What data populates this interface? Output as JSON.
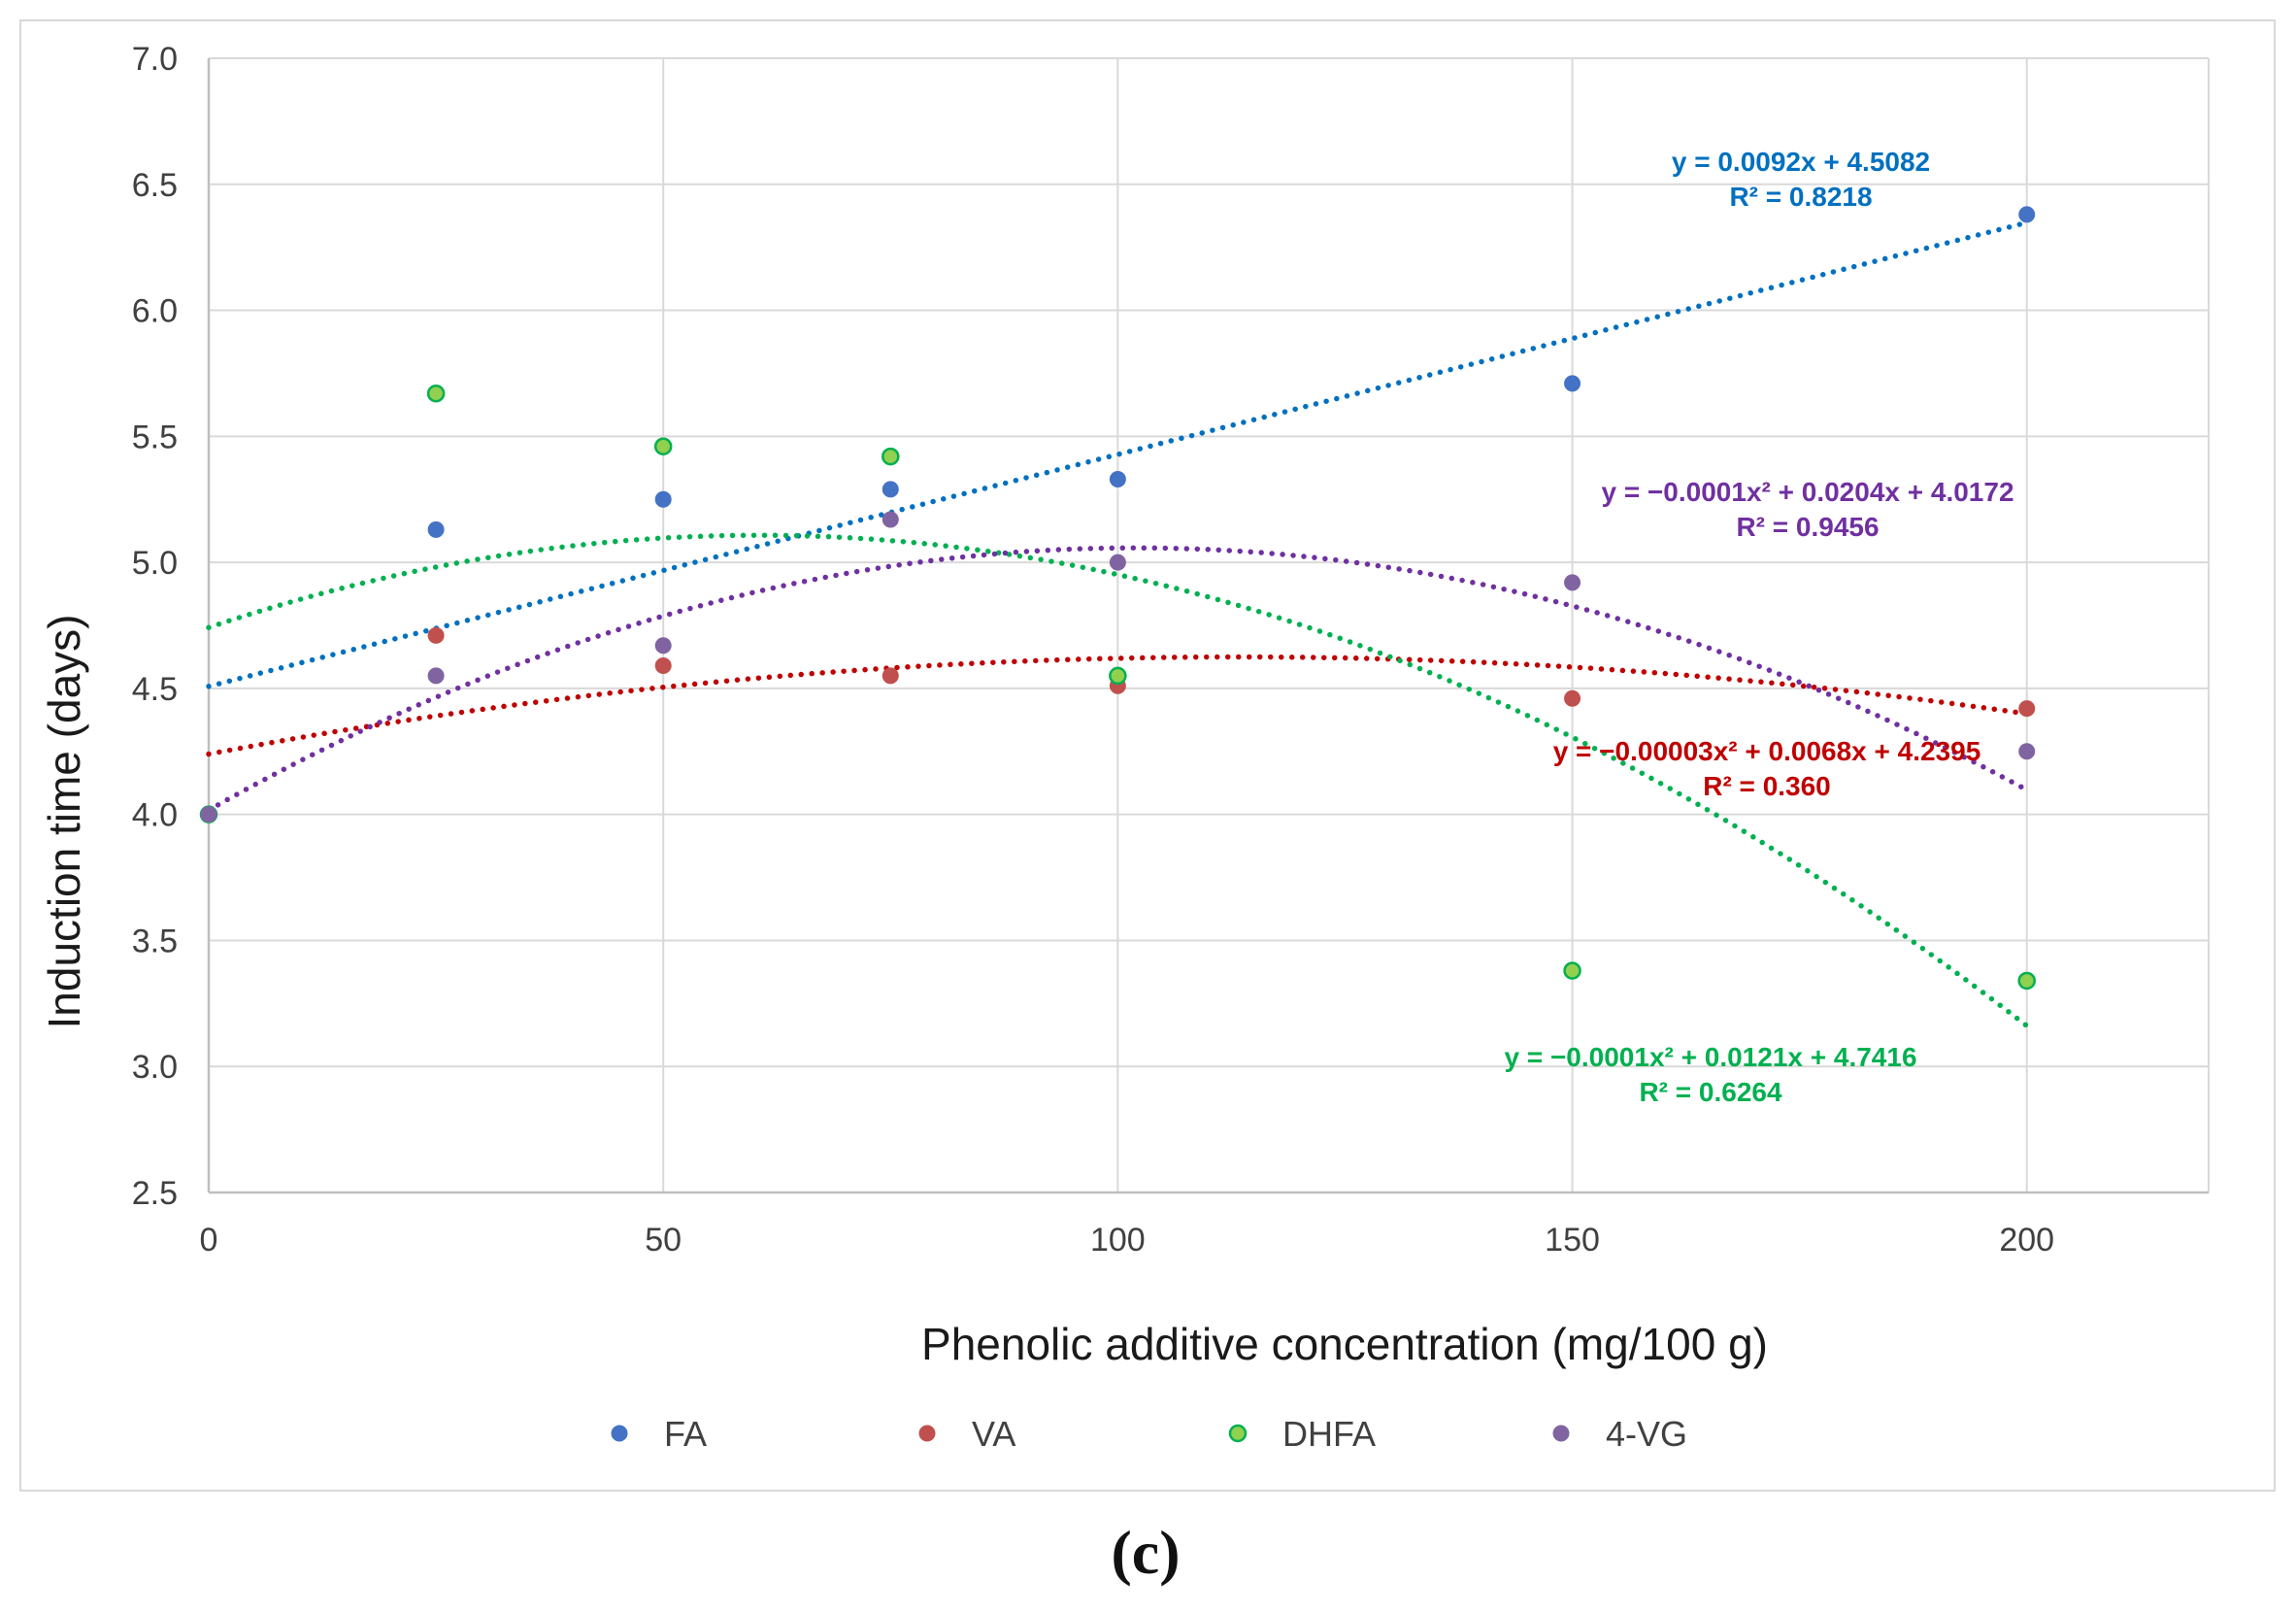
{
  "chart_data": {
    "type": "scatter",
    "title": "",
    "xlabel": "Phenolic additive concentration (mg/100 g)",
    "ylabel": "Induction time (days)",
    "xlim": [
      0,
      220
    ],
    "ylim": [
      2.5,
      7.0
    ],
    "x_ticks": [
      0,
      50,
      100,
      150,
      200
    ],
    "x_tick_labels": [
      "0",
      "50",
      "100",
      "150",
      "200"
    ],
    "y_ticks": [
      2.5,
      3.0,
      3.5,
      4.0,
      4.5,
      5.0,
      5.5,
      6.0,
      6.5,
      7.0
    ],
    "y_tick_labels": [
      "2.5",
      "3.0",
      "3.5",
      "4.0",
      "4.5",
      "5.0",
      "5.5",
      "6.0",
      "6.5",
      "7.0"
    ],
    "grid": "both",
    "legend_position": "bottom",
    "caption": "(c)",
    "series": [
      {
        "name": "FA",
        "color": "#4472C4",
        "trend_color": "#0070C0",
        "x": [
          0,
          25,
          50,
          75,
          100,
          150,
          200
        ],
        "y": [
          4.0,
          5.13,
          5.25,
          5.29,
          5.33,
          5.71,
          6.38
        ],
        "trendline": {
          "kind": "linear",
          "coefficients": [
            0,
            0.0092,
            4.5082
          ]
        },
        "equation": "y = 0.0092x + 4.5082",
        "r_squared": "R² = 0.8218"
      },
      {
        "name": "VA",
        "color": "#C0504D",
        "trend_color": "#C00000",
        "x": [
          0,
          25,
          50,
          75,
          100,
          150,
          200
        ],
        "y": [
          4.0,
          4.71,
          4.59,
          4.55,
          4.51,
          4.46,
          4.42
        ],
        "trendline": {
          "kind": "polynomial",
          "coefficients": [
            -3e-05,
            0.0068,
            4.2395
          ]
        },
        "equation": "y = −0.00003x² + 0.0068x + 4.2395",
        "r_squared": "R² = 0.360"
      },
      {
        "name": "DHFA",
        "color": "#92D050",
        "trend_color": "#00B050",
        "x": [
          0,
          25,
          50,
          75,
          100,
          150,
          200
        ],
        "y": [
          4.0,
          5.67,
          5.46,
          5.42,
          4.55,
          3.38,
          3.34
        ],
        "trendline": {
          "kind": "polynomial",
          "coefficients": [
            -0.0001,
            0.0121,
            4.7416
          ]
        },
        "equation": "y = −0.0001x² + 0.0121x + 4.7416",
        "r_squared": "R² = 0.6264"
      },
      {
        "name": "4-VG",
        "color": "#8064A2",
        "trend_color": "#7030A0",
        "x": [
          0,
          25,
          50,
          75,
          100,
          150,
          200
        ],
        "y": [
          4.0,
          4.55,
          4.67,
          5.17,
          5.0,
          4.92,
          4.25
        ],
        "trendline": {
          "kind": "polynomial",
          "coefficients": [
            -0.0001,
            0.0204,
            4.0172
          ]
        },
        "equation": "y = −0.0001x² + 0.0204x + 4.0172",
        "r_squared": "R² = 0.9456"
      }
    ]
  }
}
